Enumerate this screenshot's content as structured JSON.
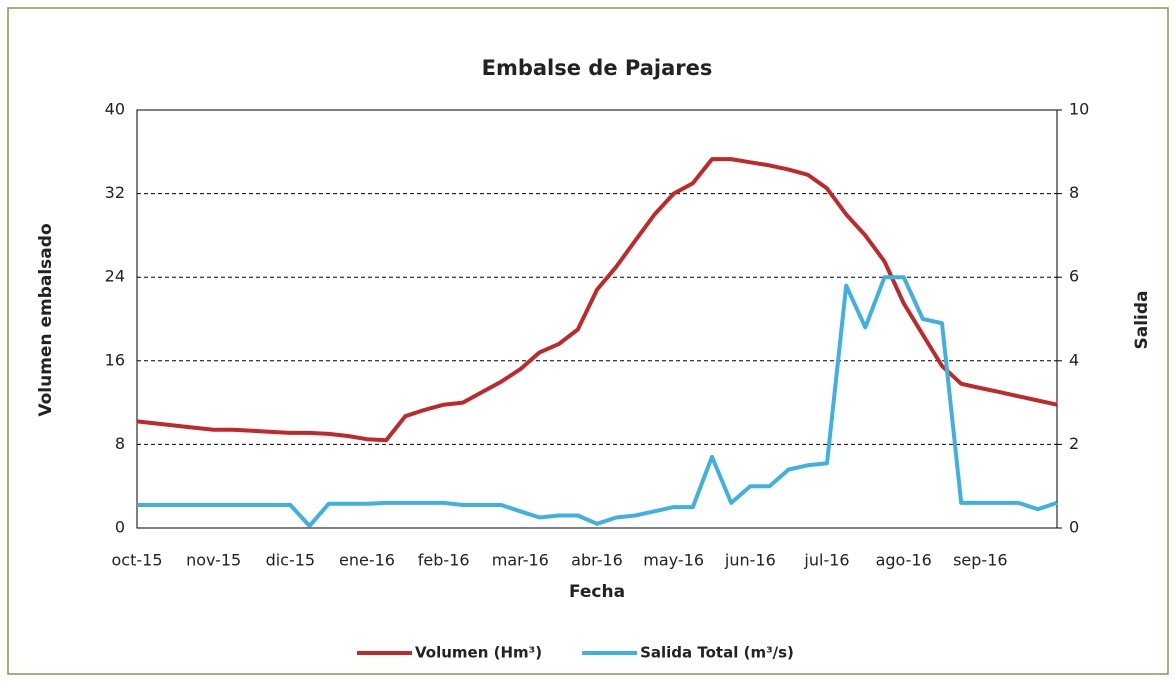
{
  "chart_data": {
    "type": "line",
    "title": "Embalse de Pajares",
    "x_label": "Fecha",
    "y_label": "Volumen embalsado",
    "y2_label": "Salida",
    "categories": [
      "oct-15",
      null,
      null,
      null,
      "nov-15",
      null,
      null,
      null,
      "dic-15",
      null,
      null,
      null,
      "ene-16",
      null,
      null,
      null,
      "feb-16",
      null,
      null,
      null,
      "mar-16",
      null,
      null,
      null,
      "abr-16",
      null,
      null,
      null,
      "may-16",
      null,
      null,
      null,
      "jun-16",
      null,
      null,
      null,
      "jul-16",
      null,
      null,
      null,
      "ago-16",
      null,
      null,
      null,
      "sep-16",
      null,
      null,
      null,
      null
    ],
    "series": [
      {
        "name": "Volumen (Hm³)",
        "color": "#c0282a",
        "axis": "y",
        "values": [
          10.2,
          10.0,
          9.8,
          9.6,
          9.4,
          9.4,
          9.3,
          9.2,
          9.1,
          9.1,
          9.0,
          8.8,
          8.5,
          8.4,
          10.7,
          11.3,
          11.8,
          12.0,
          13.0,
          14.0,
          15.2,
          16.8,
          17.6,
          19.0,
          22.8,
          25.0,
          27.5,
          30.0,
          32.0,
          33.0,
          35.3,
          35.3,
          35.0,
          34.7,
          34.3,
          33.8,
          32.5,
          30.0,
          28.0,
          25.5,
          21.5,
          18.5,
          15.5,
          13.8,
          13.4,
          13.0,
          12.6,
          12.2,
          11.8
        ]
      },
      {
        "name": "Salida Total (m³/s)",
        "color": "#3fb0e0",
        "axis": "y2",
        "values": [
          0.55,
          0.55,
          0.55,
          0.55,
          0.55,
          0.55,
          0.55,
          0.55,
          0.55,
          0.05,
          0.58,
          0.58,
          0.58,
          0.6,
          0.6,
          0.6,
          0.6,
          0.55,
          0.55,
          0.55,
          0.4,
          0.25,
          0.3,
          0.3,
          0.1,
          0.25,
          0.3,
          0.4,
          0.5,
          0.5,
          1.7,
          0.6,
          1.0,
          1.0,
          1.4,
          1.5,
          1.55,
          5.8,
          4.8,
          6.0,
          6.0,
          5.0,
          4.9,
          0.6,
          0.6,
          0.6,
          0.6,
          0.45,
          0.6
        ]
      }
    ],
    "ylim": [
      0,
      40
    ],
    "yticks": [
      0,
      8,
      16,
      24,
      32,
      40
    ],
    "y2lim": [
      0,
      10
    ],
    "y2ticks": [
      0,
      2,
      4,
      6,
      8,
      10
    ],
    "grid": true,
    "legend": "bottom"
  }
}
